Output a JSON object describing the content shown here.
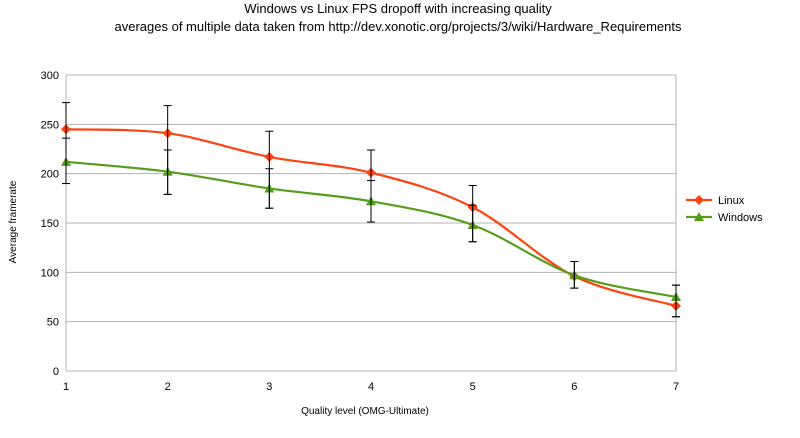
{
  "chart_data": {
    "type": "line",
    "title": "Windows vs Linux FPS dropoff with increasing quality",
    "subtitle": "averages of multiple data taken from http://dev.xonotic.org/projects/3/wiki/Hardware_Requirements",
    "xlabel": "Quality level (OMG-Ultimate)",
    "ylabel": "Average framerate",
    "x": [
      1,
      2,
      3,
      4,
      5,
      6,
      7
    ],
    "xlim": [
      1,
      7
    ],
    "ylim": [
      0,
      300
    ],
    "yticks": [
      0,
      50,
      100,
      150,
      200,
      250,
      300
    ],
    "grid": "horizontal",
    "legend_position": "right",
    "series": [
      {
        "name": "Linux",
        "color": "#ff420e",
        "marker": "diamond",
        "values": [
          245,
          241,
          217,
          201,
          166,
          96,
          66
        ],
        "error_low": [
          190,
          179,
          165,
          151,
          131,
          84,
          55
        ],
        "error_high": [
          272,
          269,
          243,
          224,
          188,
          111,
          87
        ]
      },
      {
        "name": "Windows",
        "color": "#579d1c",
        "marker": "triangle",
        "values": [
          212,
          202,
          185,
          172,
          148,
          97,
          75
        ],
        "error_low": [
          190,
          179,
          165,
          151,
          131,
          84,
          55
        ],
        "error_high": [
          236,
          224,
          205,
          193,
          168,
          111,
          87
        ]
      }
    ]
  }
}
